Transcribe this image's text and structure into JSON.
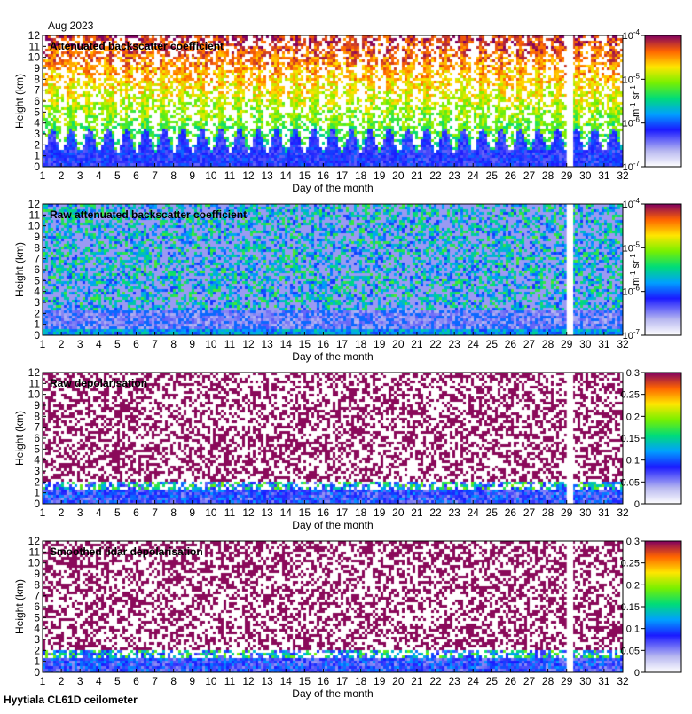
{
  "header": {
    "date_label": "Aug 2023"
  },
  "footer": {
    "site_label": "Hyytiala CL61D ceilometer"
  },
  "chart_data": [
    {
      "type": "heatmap",
      "title": "Attenuated backscatter coefficient",
      "xlabel": "Day of the month",
      "ylabel": "Height (km)",
      "xlim": [
        1,
        32
      ],
      "ylim": [
        0,
        12
      ],
      "x_ticks": [
        "1",
        "2",
        "3",
        "4",
        "5",
        "6",
        "7",
        "8",
        "9",
        "10",
        "11",
        "12",
        "13",
        "14",
        "15",
        "16",
        "17",
        "18",
        "19",
        "20",
        "21",
        "22",
        "23",
        "24",
        "25",
        "26",
        "27",
        "28",
        "29",
        "30",
        "31",
        "32"
      ],
      "y_ticks": [
        "0",
        "1",
        "2",
        "3",
        "4",
        "5",
        "6",
        "7",
        "8",
        "9",
        "10",
        "11",
        "12"
      ],
      "data_gap": [
        29.0,
        29.35
      ],
      "colorbar": {
        "scale": "log",
        "range": [
          1e-07,
          0.0001
        ],
        "ticks": [
          "10",
          "10",
          "10",
          "10"
        ],
        "tick_exponents": [
          "-7",
          "-6",
          "-5",
          "-4"
        ],
        "unit_text": "m",
        "unit_exp1": "-1",
        "unit_mid": " sr",
        "unit_exp2": "-1"
      }
    },
    {
      "type": "heatmap",
      "title": "Raw attenuated backscatter coefficient",
      "xlabel": "Day of the month",
      "ylabel": "Height (km)",
      "xlim": [
        1,
        32
      ],
      "ylim": [
        0,
        12
      ],
      "x_ticks": [
        "1",
        "2",
        "3",
        "4",
        "5",
        "6",
        "7",
        "8",
        "9",
        "10",
        "11",
        "12",
        "13",
        "14",
        "15",
        "16",
        "17",
        "18",
        "19",
        "20",
        "21",
        "22",
        "23",
        "24",
        "25",
        "26",
        "27",
        "28",
        "29",
        "30",
        "31",
        "32"
      ],
      "y_ticks": [
        "0",
        "1",
        "2",
        "3",
        "4",
        "5",
        "6",
        "7",
        "8",
        "9",
        "10",
        "11",
        "12"
      ],
      "data_gap": [
        29.0,
        29.35
      ],
      "colorbar": {
        "scale": "log",
        "range": [
          1e-07,
          0.0001
        ],
        "ticks": [
          "10",
          "10",
          "10",
          "10"
        ],
        "tick_exponents": [
          "-7",
          "-6",
          "-5",
          "-4"
        ],
        "unit_text": "m",
        "unit_exp1": "-1",
        "unit_mid": " sr",
        "unit_exp2": "-1"
      }
    },
    {
      "type": "heatmap",
      "title": "Raw depolarisation",
      "xlabel": "Day of the month",
      "ylabel": "Height (km)",
      "xlim": [
        1,
        32
      ],
      "ylim": [
        0,
        12
      ],
      "x_ticks": [
        "1",
        "2",
        "3",
        "4",
        "5",
        "6",
        "7",
        "8",
        "9",
        "10",
        "11",
        "12",
        "13",
        "14",
        "15",
        "16",
        "17",
        "18",
        "19",
        "20",
        "21",
        "22",
        "23",
        "24",
        "25",
        "26",
        "27",
        "28",
        "29",
        "30",
        "31",
        "32"
      ],
      "y_ticks": [
        "0",
        "1",
        "2",
        "3",
        "4",
        "5",
        "6",
        "7",
        "8",
        "9",
        "10",
        "11",
        "12"
      ],
      "data_gap": [
        29.0,
        29.35
      ],
      "colorbar": {
        "scale": "linear",
        "range": [
          0,
          0.3
        ],
        "ticks": [
          "0",
          "0.05",
          "0.1",
          "0.15",
          "0.2",
          "0.25",
          "0.3"
        ]
      }
    },
    {
      "type": "heatmap",
      "title": "Smoothed lidar depolarisation",
      "xlabel": "Day of the month",
      "ylabel": "Height (km)",
      "xlim": [
        1,
        32
      ],
      "ylim": [
        0,
        12
      ],
      "x_ticks": [
        "1",
        "2",
        "3",
        "4",
        "5",
        "6",
        "7",
        "8",
        "9",
        "10",
        "11",
        "12",
        "13",
        "14",
        "15",
        "16",
        "17",
        "18",
        "19",
        "20",
        "21",
        "22",
        "23",
        "24",
        "25",
        "26",
        "27",
        "28",
        "29",
        "30",
        "31",
        "32"
      ],
      "y_ticks": [
        "0",
        "1",
        "2",
        "3",
        "4",
        "5",
        "6",
        "7",
        "8",
        "9",
        "10",
        "11",
        "12"
      ],
      "data_gap": [
        29.0,
        29.35
      ],
      "colorbar": {
        "scale": "linear",
        "range": [
          0,
          0.3
        ],
        "ticks": [
          "0",
          "0.05",
          "0.1",
          "0.15",
          "0.2",
          "0.25",
          "0.3"
        ]
      }
    }
  ]
}
